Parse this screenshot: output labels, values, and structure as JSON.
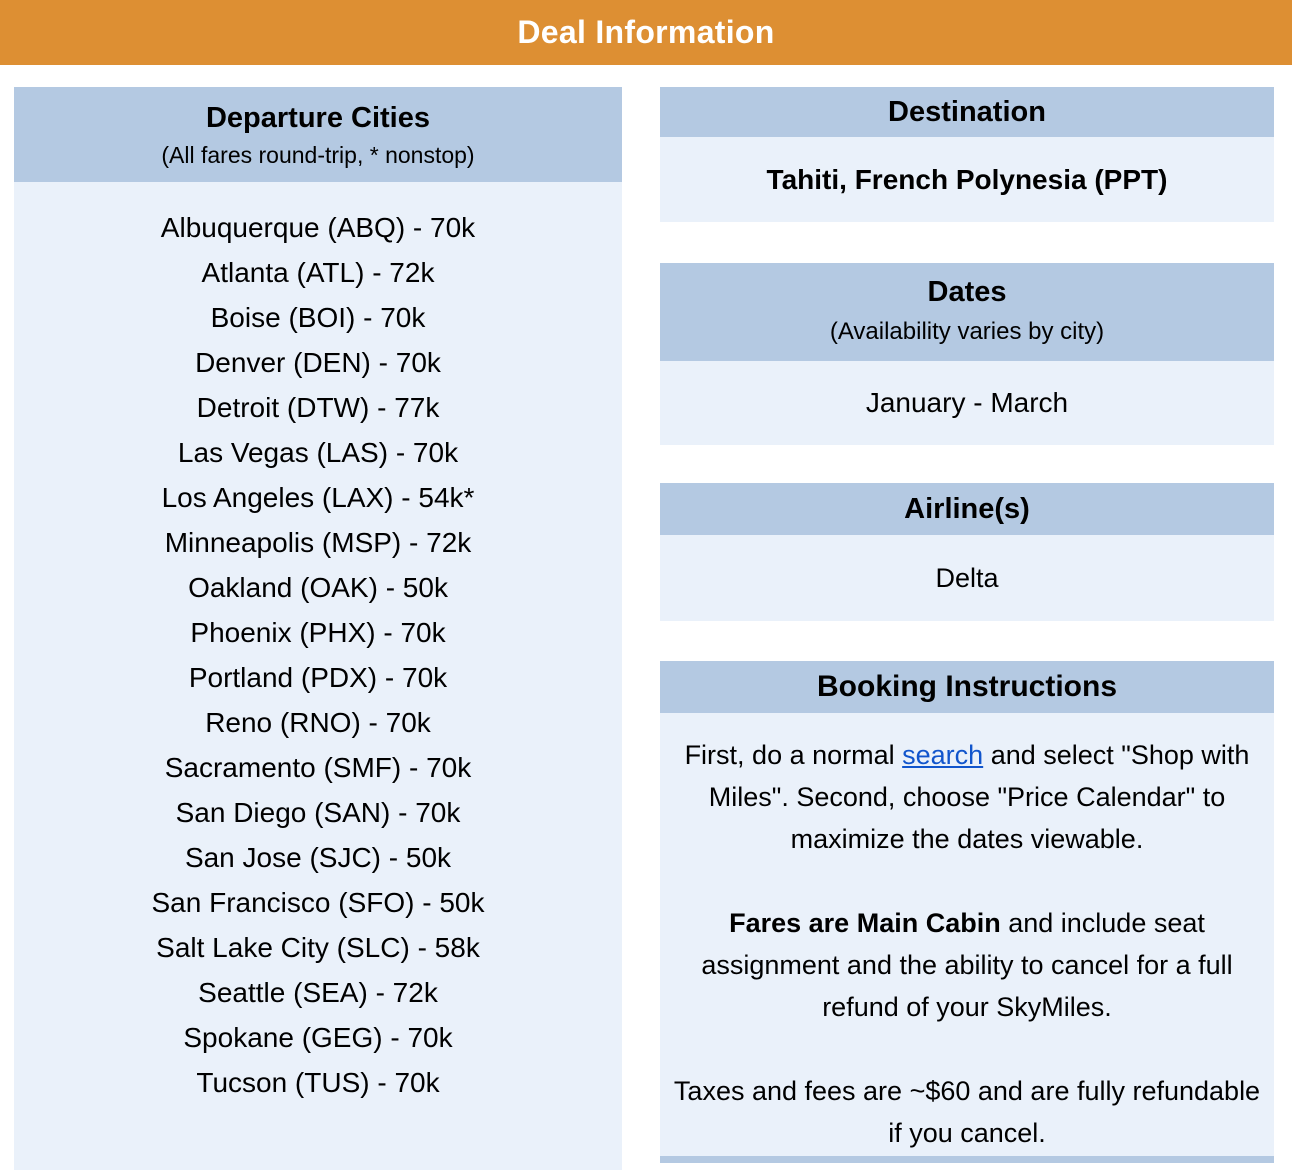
{
  "colors": {
    "banner_orange": "#DD8F33",
    "section_header_blue": "#B4C9E2",
    "section_body_blue": "#EAF1FA",
    "link_blue": "#1155CC",
    "banner_text": "#FFFFFF",
    "text": "#000000"
  },
  "banner": {
    "title": "Deal Information"
  },
  "departure_cities": {
    "title": "Departure Cities",
    "subtitle": "(All fares round-trip, * nonstop)",
    "items": [
      "Albuquerque (ABQ) - 70k",
      "Atlanta (ATL) - 72k",
      "Boise (BOI) -  70k",
      "Denver (DEN) - 70k",
      "Detroit (DTW) - 77k",
      "Las Vegas (LAS) - 70k",
      "Los Angeles (LAX) - 54k*",
      "Minneapolis (MSP) - 72k",
      "Oakland (OAK) - 50k",
      "Phoenix (PHX) - 70k",
      "Portland (PDX) - 70k",
      "Reno (RNO) - 70k",
      "Sacramento (SMF) - 70k",
      "San Diego (SAN) - 70k",
      "San Jose (SJC) - 50k",
      "San Francisco (SFO) - 50k",
      "Salt Lake City (SLC) - 58k",
      "Seattle (SEA) - 72k",
      "Spokane (GEG) - 70k",
      "Tucson (TUS) - 70k"
    ]
  },
  "destination": {
    "title": "Destination",
    "value": "Tahiti, French Polynesia (PPT)"
  },
  "dates": {
    "title": "Dates",
    "subtitle": "(Availability varies by city)",
    "value": "January - March"
  },
  "airlines": {
    "title": "Airline(s)",
    "value": "Delta"
  },
  "booking": {
    "title": "Booking Instructions",
    "paragraphs": [
      {
        "segments": [
          {
            "text": "First, do a normal "
          },
          {
            "text": "search",
            "style": "link"
          },
          {
            "text": " and select \"Shop with Miles\". Second, choose \"Price Calendar\" to maximize the dates viewable."
          }
        ]
      },
      {
        "segments": [
          {
            "text": "Fares are Main Cabin",
            "style": "bold"
          },
          {
            "text": " and include seat assignment and the ability to cancel for a full refund of your SkyMiles."
          }
        ]
      },
      {
        "segments": [
          {
            "text": "Taxes and fees are ~$60 and are fully refundable if you cancel."
          }
        ]
      }
    ]
  }
}
